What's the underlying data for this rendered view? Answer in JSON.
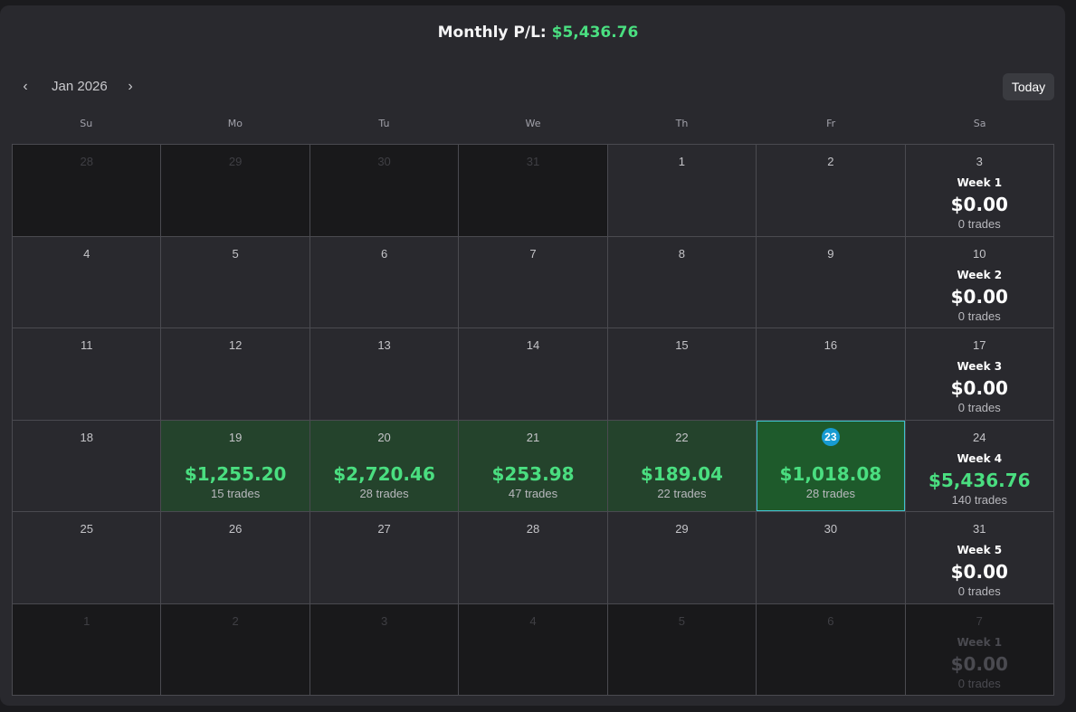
{
  "header": {
    "monthly_label": "Monthly P/L:",
    "monthly_value": "$5,436.76"
  },
  "nav": {
    "prev_icon": "‹",
    "next_icon": "›",
    "month_label": "Jan 2026",
    "today_label": "Today"
  },
  "weekdays": [
    "Su",
    "Mo",
    "Tu",
    "We",
    "Th",
    "Fr",
    "Sa"
  ],
  "colors": {
    "profit_green": "#4ade80",
    "profit_cell": "#24432c",
    "today_cell": "#1e5a2b",
    "today_badge": "#179bd2",
    "today_outline": "#3fc2cf"
  },
  "weeks": [
    {
      "days": [
        {
          "day": "28",
          "outside": true
        },
        {
          "day": "29",
          "outside": true
        },
        {
          "day": "30",
          "outside": true
        },
        {
          "day": "31",
          "outside": true
        },
        {
          "day": "1"
        },
        {
          "day": "2"
        },
        {
          "day": "3",
          "summary": {
            "label": "Week 1",
            "pl": "$0.00",
            "trades": "0 trades"
          }
        }
      ]
    },
    {
      "days": [
        {
          "day": "4"
        },
        {
          "day": "5"
        },
        {
          "day": "6"
        },
        {
          "day": "7"
        },
        {
          "day": "8"
        },
        {
          "day": "9"
        },
        {
          "day": "10",
          "summary": {
            "label": "Week 2",
            "pl": "$0.00",
            "trades": "0 trades"
          }
        }
      ]
    },
    {
      "days": [
        {
          "day": "11"
        },
        {
          "day": "12"
        },
        {
          "day": "13"
        },
        {
          "day": "14"
        },
        {
          "day": "15"
        },
        {
          "day": "16"
        },
        {
          "day": "17",
          "summary": {
            "label": "Week 3",
            "pl": "$0.00",
            "trades": "0 trades"
          }
        }
      ]
    },
    {
      "days": [
        {
          "day": "18"
        },
        {
          "day": "19",
          "pl": "$1,255.20",
          "trades": "15 trades"
        },
        {
          "day": "20",
          "pl": "$2,720.46",
          "trades": "28 trades"
        },
        {
          "day": "21",
          "pl": "$253.98",
          "trades": "47 trades"
        },
        {
          "day": "22",
          "pl": "$189.04",
          "trades": "22 trades"
        },
        {
          "day": "23",
          "pl": "$1,018.08",
          "trades": "28 trades",
          "today": true
        },
        {
          "day": "24",
          "summary": {
            "label": "Week 4",
            "pl": "$5,436.76",
            "trades": "140 trades",
            "positive": true
          }
        }
      ]
    },
    {
      "days": [
        {
          "day": "25"
        },
        {
          "day": "26"
        },
        {
          "day": "27"
        },
        {
          "day": "28"
        },
        {
          "day": "29"
        },
        {
          "day": "30"
        },
        {
          "day": "31",
          "summary": {
            "label": "Week 5",
            "pl": "$0.00",
            "trades": "0 trades"
          }
        }
      ]
    },
    {
      "days": [
        {
          "day": "1",
          "outside": true
        },
        {
          "day": "2",
          "outside": true
        },
        {
          "day": "3",
          "outside": true
        },
        {
          "day": "4",
          "outside": true
        },
        {
          "day": "5",
          "outside": true
        },
        {
          "day": "6",
          "outside": true
        },
        {
          "day": "7",
          "outside": true,
          "summary": {
            "label": "Week 1",
            "pl": "$0.00",
            "trades": "0 trades"
          }
        }
      ]
    }
  ]
}
